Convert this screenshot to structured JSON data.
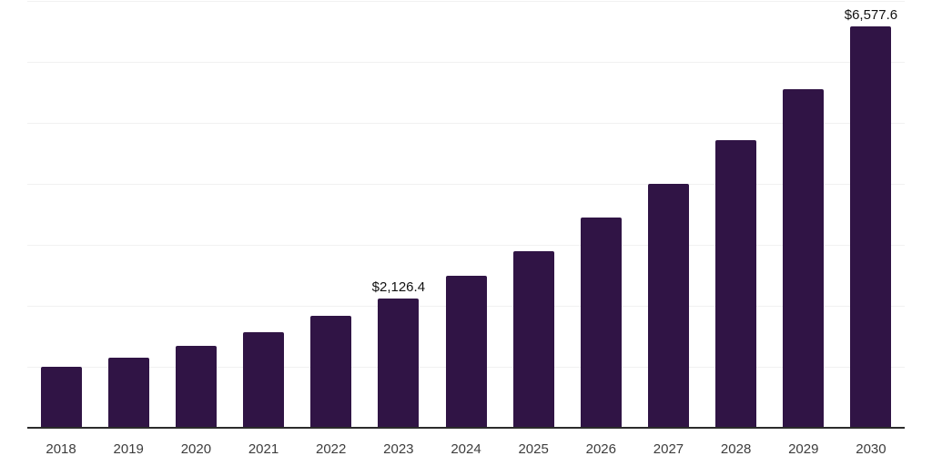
{
  "chart_data": {
    "type": "bar",
    "title": "",
    "xlabel": "",
    "ylabel": "",
    "categories": [
      "2018",
      "2019",
      "2020",
      "2021",
      "2022",
      "2023",
      "2024",
      "2025",
      "2026",
      "2027",
      "2028",
      "2029",
      "2030"
    ],
    "values": [
      995,
      1150,
      1340,
      1565,
      1830,
      2126.4,
      2500,
      2900,
      3445,
      4000,
      4715,
      5555,
      6577.6
    ],
    "data_labels": [
      {
        "category": "2023",
        "text": "$2,126.4"
      },
      {
        "category": "2030",
        "text": "$6,577.6"
      }
    ],
    "ylim": [
      0,
      7000
    ],
    "gridline_interval": 1000,
    "grid": true,
    "legend": false,
    "colors": {
      "bar": "#301445",
      "gridline": "#f1f1f1",
      "axis": "#2b2b2b",
      "tick_label": "#3d3d3d",
      "data_label": "#111111",
      "background": "#ffffff"
    }
  }
}
